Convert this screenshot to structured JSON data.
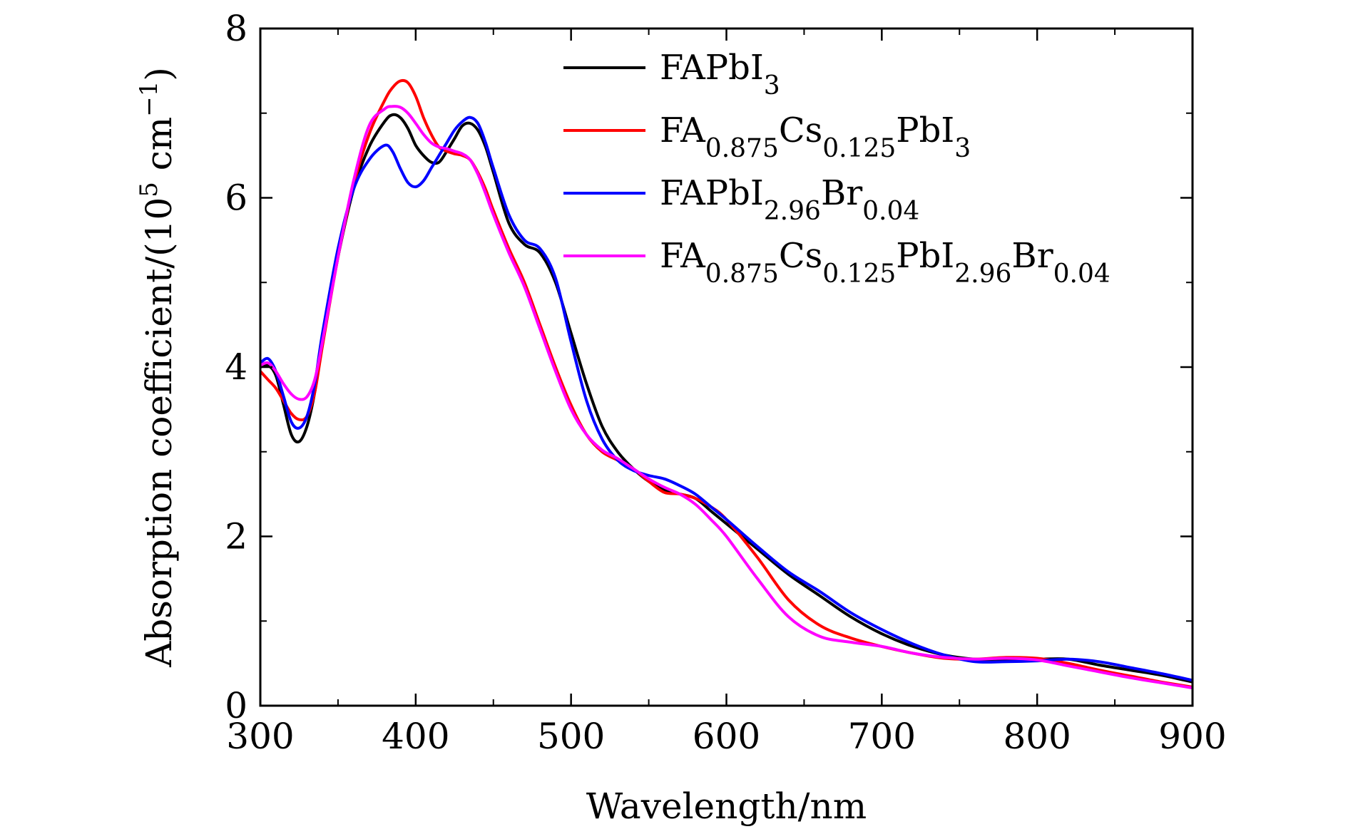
{
  "chart_data": {
    "type": "line",
    "xlabel": "Wavelength/nm",
    "ylabel": {
      "main": "Absorption coefficient/(10",
      "sup": "5",
      "unit": " cm",
      "unit_sup": "−1",
      "close": ")"
    },
    "xlim": [
      300,
      900
    ],
    "ylim": [
      0,
      8
    ],
    "x_ticks": [
      "300",
      "400",
      "500",
      "600",
      "700",
      "800",
      "900"
    ],
    "y_ticks": [
      "0",
      "2",
      "4",
      "6",
      "8"
    ],
    "grid": false,
    "legend_position": "top-right",
    "series": [
      {
        "name": "FAPbI3",
        "label_parts": [
          {
            "t": "FAPbI",
            "sub": false
          },
          {
            "t": "3",
            "sub": true
          }
        ],
        "color": "#000000",
        "x": [
          300,
          305,
          310,
          315,
          320,
          325,
          330,
          335,
          340,
          350,
          360,
          370,
          380,
          385,
          390,
          395,
          400,
          405,
          410,
          415,
          420,
          425,
          430,
          435,
          440,
          445,
          450,
          460,
          470,
          480,
          490,
          500,
          510,
          520,
          530,
          540,
          550,
          560,
          570,
          580,
          590,
          600,
          620,
          640,
          660,
          680,
          700,
          720,
          740,
          760,
          780,
          800,
          820,
          840,
          860,
          880,
          900
        ],
        "y": [
          4.0,
          4.02,
          3.9,
          3.55,
          3.2,
          3.12,
          3.3,
          3.7,
          4.3,
          5.3,
          6.1,
          6.6,
          6.9,
          6.98,
          6.95,
          6.82,
          6.62,
          6.5,
          6.42,
          6.42,
          6.55,
          6.7,
          6.85,
          6.88,
          6.8,
          6.6,
          6.3,
          5.7,
          5.45,
          5.35,
          5.0,
          4.4,
          3.8,
          3.3,
          3.0,
          2.8,
          2.65,
          2.55,
          2.5,
          2.45,
          2.3,
          2.15,
          1.85,
          1.55,
          1.3,
          1.05,
          0.85,
          0.7,
          0.6,
          0.55,
          0.55,
          0.55,
          0.55,
          0.48,
          0.42,
          0.36,
          0.28
        ]
      },
      {
        "name": "FA0.875Cs0.125PbI3",
        "label_parts": [
          {
            "t": "FA",
            "sub": false
          },
          {
            "t": "0.875",
            "sub": true
          },
          {
            "t": "Cs",
            "sub": false
          },
          {
            "t": "0.125",
            "sub": true
          },
          {
            "t": "PbI",
            "sub": false
          },
          {
            "t": "3",
            "sub": true
          }
        ],
        "color": "#ff0000",
        "x": [
          300,
          305,
          310,
          315,
          320,
          325,
          330,
          335,
          340,
          350,
          360,
          370,
          380,
          385,
          390,
          395,
          400,
          405,
          410,
          415,
          420,
          425,
          430,
          435,
          440,
          445,
          450,
          460,
          470,
          480,
          490,
          500,
          510,
          520,
          530,
          540,
          550,
          560,
          570,
          580,
          590,
          600,
          620,
          640,
          660,
          680,
          700,
          720,
          740,
          760,
          780,
          800,
          820,
          840,
          860,
          880,
          900
        ],
        "y": [
          3.95,
          3.85,
          3.75,
          3.6,
          3.45,
          3.38,
          3.42,
          3.7,
          4.25,
          5.3,
          6.15,
          6.75,
          7.15,
          7.3,
          7.38,
          7.36,
          7.2,
          6.95,
          6.75,
          6.6,
          6.55,
          6.52,
          6.5,
          6.45,
          6.3,
          6.1,
          5.85,
          5.4,
          5.0,
          4.5,
          4.0,
          3.55,
          3.2,
          3.0,
          2.9,
          2.8,
          2.65,
          2.52,
          2.5,
          2.45,
          2.35,
          2.2,
          1.75,
          1.25,
          0.95,
          0.8,
          0.7,
          0.62,
          0.56,
          0.55,
          0.57,
          0.56,
          0.5,
          0.42,
          0.35,
          0.28,
          0.22
        ]
      },
      {
        "name": "FAPbI2.96Br0.04",
        "label_parts": [
          {
            "t": "FAPbI",
            "sub": false
          },
          {
            "t": "2.96",
            "sub": true
          },
          {
            "t": "Br",
            "sub": false
          },
          {
            "t": "0.04",
            "sub": true
          }
        ],
        "color": "#0000ff",
        "x": [
          300,
          305,
          310,
          315,
          320,
          325,
          330,
          335,
          340,
          350,
          360,
          370,
          380,
          385,
          390,
          395,
          400,
          405,
          410,
          415,
          420,
          425,
          430,
          435,
          440,
          445,
          450,
          460,
          470,
          480,
          490,
          500,
          510,
          520,
          530,
          540,
          550,
          560,
          570,
          580,
          590,
          600,
          620,
          640,
          660,
          680,
          700,
          720,
          740,
          760,
          780,
          800,
          820,
          840,
          860,
          880,
          900
        ],
        "y": [
          4.05,
          4.1,
          3.95,
          3.65,
          3.35,
          3.28,
          3.42,
          3.8,
          4.4,
          5.4,
          6.1,
          6.45,
          6.62,
          6.55,
          6.35,
          6.18,
          6.13,
          6.2,
          6.35,
          6.5,
          6.65,
          6.8,
          6.9,
          6.95,
          6.88,
          6.65,
          6.35,
          5.8,
          5.5,
          5.4,
          5.05,
          4.3,
          3.6,
          3.15,
          2.9,
          2.78,
          2.72,
          2.68,
          2.6,
          2.5,
          2.35,
          2.2,
          1.88,
          1.58,
          1.35,
          1.1,
          0.9,
          0.73,
          0.6,
          0.52,
          0.52,
          0.53,
          0.55,
          0.52,
          0.45,
          0.38,
          0.3
        ]
      },
      {
        "name": "FA0.875Cs0.125PbI2.96Br0.04",
        "label_parts": [
          {
            "t": "FA",
            "sub": false
          },
          {
            "t": "0.875",
            "sub": true
          },
          {
            "t": "Cs",
            "sub": false
          },
          {
            "t": "0.125",
            "sub": true
          },
          {
            "t": "PbI",
            "sub": false
          },
          {
            "t": "2.96",
            "sub": true
          },
          {
            "t": "Br",
            "sub": false
          },
          {
            "t": "0.04",
            "sub": true
          }
        ],
        "color": "#ff00ff",
        "x": [
          300,
          305,
          310,
          315,
          320,
          325,
          330,
          335,
          340,
          350,
          360,
          370,
          380,
          385,
          390,
          395,
          400,
          405,
          410,
          415,
          420,
          425,
          430,
          435,
          440,
          445,
          450,
          460,
          470,
          480,
          490,
          500,
          510,
          520,
          530,
          540,
          550,
          560,
          570,
          580,
          590,
          600,
          620,
          640,
          660,
          680,
          700,
          720,
          740,
          760,
          780,
          800,
          820,
          840,
          860,
          880,
          900
        ],
        "y": [
          4.02,
          4.05,
          3.95,
          3.8,
          3.68,
          3.62,
          3.65,
          3.85,
          4.3,
          5.3,
          6.2,
          6.85,
          7.05,
          7.08,
          7.07,
          7.0,
          6.88,
          6.75,
          6.65,
          6.6,
          6.58,
          6.55,
          6.52,
          6.45,
          6.28,
          6.05,
          5.8,
          5.35,
          4.95,
          4.45,
          3.95,
          3.5,
          3.2,
          3.02,
          2.92,
          2.8,
          2.68,
          2.58,
          2.5,
          2.38,
          2.2,
          2.0,
          1.5,
          1.05,
          0.82,
          0.75,
          0.7,
          0.62,
          0.57,
          0.55,
          0.56,
          0.54,
          0.47,
          0.4,
          0.33,
          0.27,
          0.21
        ]
      }
    ]
  }
}
